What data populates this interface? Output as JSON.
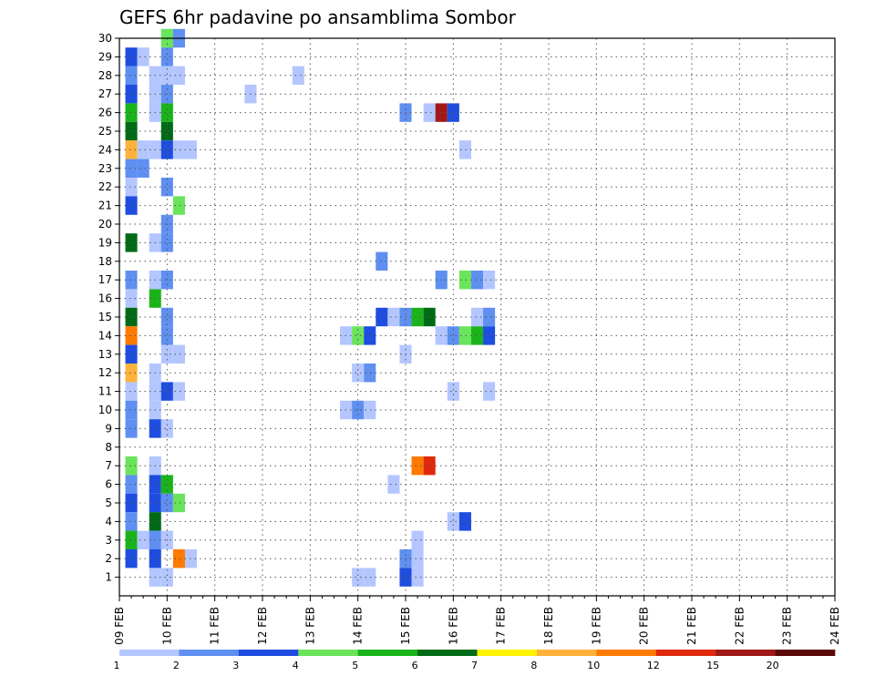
{
  "chart_data": {
    "type": "heatmap",
    "title": "GEFS 6hr padavine po ansamblima Sombor",
    "x_tick_labels": [
      "09 FEB",
      "10 FEB",
      "11 FEB",
      "12 FEB",
      "13 FEB",
      "14 FEB",
      "15 FEB",
      "16 FEB",
      "17 FEB",
      "18 FEB",
      "19 FEB",
      "20 FEB",
      "21 FEB",
      "22 FEB",
      "23 FEB",
      "24 FEB"
    ],
    "y_tick_labels": [
      "1",
      "2",
      "3",
      "4",
      "5",
      "6",
      "7",
      "8",
      "9",
      "10",
      "11",
      "12",
      "13",
      "14",
      "15",
      "16",
      "17",
      "18",
      "19",
      "20",
      "21",
      "22",
      "23",
      "24",
      "25",
      "26",
      "27",
      "28",
      "29",
      "30"
    ],
    "x_range_steps": [
      0,
      60
    ],
    "y_range": [
      0,
      30
    ],
    "grid": true,
    "colorbar": {
      "levels": [
        "1",
        "2",
        "3",
        "4",
        "5",
        "6",
        "7",
        "8",
        "10",
        "12",
        "15",
        "20"
      ],
      "colors": [
        "#b3c6ff",
        "#5f8ff0",
        "#1e4de0",
        "#6ae45a",
        "#1ab41a",
        "#006b16",
        "#fff200",
        "#ffb23a",
        "#ff7a00",
        "#e0290c",
        "#a01818",
        "#5a0808"
      ]
    },
    "cells": [
      {
        "member": 30,
        "step": [
          [
            4,
            0
          ],
          [
            4,
            3
          ],
          [
            5,
            1
          ]
        ]
      },
      {
        "member": 29,
        "step": [
          [
            1,
            2
          ],
          [
            2,
            0
          ],
          [
            4,
            1
          ]
        ]
      },
      {
        "member": 28,
        "step": [
          [
            1,
            1
          ],
          [
            3,
            0
          ],
          [
            4,
            0
          ],
          [
            5,
            0
          ],
          [
            15,
            0
          ]
        ]
      },
      {
        "member": 27,
        "step": [
          [
            1,
            2
          ],
          [
            3,
            0
          ],
          [
            4,
            1
          ],
          [
            11,
            0
          ]
        ]
      },
      {
        "member": 26,
        "step": [
          [
            1,
            4
          ],
          [
            3,
            0
          ],
          [
            4,
            4
          ],
          [
            24,
            1
          ],
          [
            26,
            0
          ],
          [
            27,
            10
          ],
          [
            28,
            2
          ]
        ]
      },
      {
        "member": 25,
        "step": [
          [
            1,
            5
          ],
          [
            4,
            5
          ]
        ]
      },
      {
        "member": 24,
        "step": [
          [
            1,
            7
          ],
          [
            2,
            0
          ],
          [
            3,
            0
          ],
          [
            4,
            2
          ],
          [
            5,
            0
          ],
          [
            6,
            0
          ],
          [
            29,
            0
          ]
        ]
      },
      {
        "member": 23,
        "step": [
          [
            1,
            1
          ],
          [
            2,
            1
          ]
        ]
      },
      {
        "member": 22,
        "step": [
          [
            1,
            0
          ],
          [
            4,
            1
          ]
        ]
      },
      {
        "member": 21,
        "step": [
          [
            1,
            2
          ],
          [
            5,
            3
          ]
        ]
      },
      {
        "member": 20,
        "step": [
          [
            4,
            1
          ]
        ]
      },
      {
        "member": 19,
        "step": [
          [
            1,
            5
          ],
          [
            3,
            0
          ],
          [
            4,
            1
          ]
        ]
      },
      {
        "member": 18,
        "step": [
          [
            22,
            1
          ]
        ]
      },
      {
        "member": 17,
        "step": [
          [
            1,
            1
          ],
          [
            3,
            0
          ],
          [
            4,
            1
          ],
          [
            27,
            1
          ],
          [
            29,
            3
          ],
          [
            30,
            1
          ],
          [
            31,
            0
          ]
        ]
      },
      {
        "member": 16,
        "step": [
          [
            1,
            0
          ],
          [
            3,
            4
          ]
        ]
      },
      {
        "member": 15,
        "step": [
          [
            1,
            5
          ],
          [
            4,
            1
          ],
          [
            22,
            2
          ],
          [
            23,
            0
          ],
          [
            24,
            1
          ],
          [
            25,
            4
          ],
          [
            26,
            5
          ],
          [
            30,
            0
          ],
          [
            31,
            1
          ]
        ]
      },
      {
        "member": 14,
        "step": [
          [
            1,
            8
          ],
          [
            4,
            1
          ],
          [
            19,
            0
          ],
          [
            20,
            3
          ],
          [
            21,
            2
          ],
          [
            27,
            0
          ],
          [
            28,
            1
          ],
          [
            29,
            3
          ],
          [
            30,
            4
          ],
          [
            31,
            2
          ]
        ]
      },
      {
        "member": 13,
        "step": [
          [
            1,
            2
          ],
          [
            4,
            0
          ],
          [
            5,
            0
          ],
          [
            24,
            0
          ]
        ]
      },
      {
        "member": 12,
        "step": [
          [
            1,
            7
          ],
          [
            3,
            0
          ],
          [
            20,
            0
          ],
          [
            21,
            1
          ]
        ]
      },
      {
        "member": 11,
        "step": [
          [
            1,
            0
          ],
          [
            3,
            0
          ],
          [
            4,
            2
          ],
          [
            5,
            0
          ],
          [
            28,
            0
          ],
          [
            31,
            0
          ]
        ]
      },
      {
        "member": 10,
        "step": [
          [
            1,
            1
          ],
          [
            3,
            0
          ],
          [
            19,
            0
          ],
          [
            20,
            1
          ],
          [
            21,
            0
          ]
        ]
      },
      {
        "member": 9,
        "step": [
          [
            1,
            1
          ],
          [
            3,
            2
          ],
          [
            4,
            0
          ]
        ]
      },
      {
        "member": 7,
        "step": [
          [
            1,
            3
          ],
          [
            3,
            0
          ],
          [
            25,
            8
          ],
          [
            26,
            9
          ]
        ]
      },
      {
        "member": 6,
        "step": [
          [
            1,
            1
          ],
          [
            3,
            2
          ],
          [
            4,
            4
          ],
          [
            23,
            0
          ]
        ]
      },
      {
        "member": 5,
        "step": [
          [
            1,
            2
          ],
          [
            3,
            2
          ],
          [
            4,
            1
          ],
          [
            5,
            3
          ]
        ]
      },
      {
        "member": 4,
        "step": [
          [
            1,
            1
          ],
          [
            3,
            5
          ],
          [
            28,
            0
          ],
          [
            29,
            2
          ]
        ]
      },
      {
        "member": 3,
        "step": [
          [
            1,
            4
          ],
          [
            2,
            0
          ],
          [
            3,
            1
          ],
          [
            4,
            0
          ],
          [
            25,
            0
          ]
        ]
      },
      {
        "member": 2,
        "step": [
          [
            1,
            2
          ],
          [
            3,
            2
          ],
          [
            5,
            8
          ],
          [
            6,
            0
          ],
          [
            24,
            1
          ],
          [
            25,
            0
          ]
        ]
      },
      {
        "member": 1,
        "step": [
          [
            3,
            0
          ],
          [
            4,
            0
          ],
          [
            20,
            0
          ],
          [
            21,
            0
          ],
          [
            24,
            2
          ],
          [
            25,
            0
          ]
        ]
      }
    ]
  }
}
